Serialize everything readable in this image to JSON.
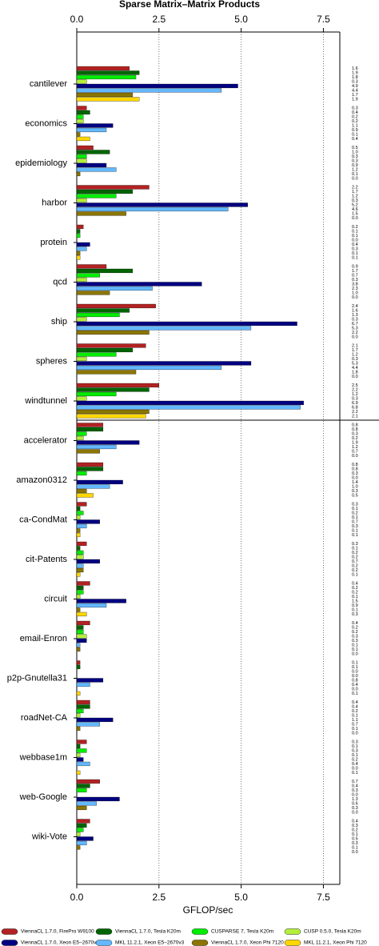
{
  "chart_data": {
    "type": "bar",
    "orientation": "horizontal",
    "title": "Sparse Matrix–Matrix Products",
    "xlabel": "GFLOP/sec",
    "xlim": [
      0,
      8
    ],
    "xticks": [
      {
        "value": 0,
        "label": "0.0"
      },
      2.5,
      {
        "value": 5,
        "label": "5.0"
      },
      7.5
    ],
    "grid": true,
    "categories": [
      "cantilever",
      "economics",
      "epidemiology",
      "harbor",
      "protein",
      "qcd",
      "ship",
      "spheres",
      "windtunnel",
      "accelerator",
      "amazon0312",
      "ca-CondMat",
      "cit-Patents",
      "circuit",
      "email-Enron",
      "p2p-Gnutella31",
      "roadNet-CA",
      "webbase1m",
      "web-Google",
      "wiki-Vote"
    ],
    "series": [
      {
        "name": "ViennaCL 1.7.0, FirePro W9100",
        "color": "#b22222",
        "values": [
          1.6,
          0.3,
          0.5,
          2.2,
          0.2,
          0.9,
          2.4,
          2.1,
          2.5,
          0.8,
          0.8,
          0.3,
          0.3,
          0.4,
          0.4,
          0.1,
          0.4,
          0.3,
          0.7,
          0.4
        ],
        "value_labels": [
          "1.6",
          "0.3",
          "0.5",
          "2.2",
          "0.2",
          "0.9",
          "2.4",
          "2.1",
          "2.5",
          "0.8",
          "0.8",
          "0.3",
          "0.3",
          "0.4",
          "0.4",
          "0.1",
          "0.4",
          "0.3",
          "0.7",
          "0.4"
        ]
      },
      {
        "name": "ViennaCL 1.7.0, Tesla K20m",
        "color": "#006400",
        "values": [
          1.9,
          0.4,
          1.0,
          1.7,
          0.1,
          1.7,
          1.6,
          1.7,
          2.2,
          0.8,
          0.8,
          0.1,
          0.1,
          0.2,
          0.2,
          0.1,
          0.4,
          0.1,
          0.4,
          0.3
        ],
        "value_labels": [
          "1.9",
          "0.4",
          "1.0",
          "1.7",
          "0.1",
          "1.7",
          "1.6",
          "1.7",
          "2.2",
          "0.8",
          "0.8",
          "0.1",
          "0.1",
          "0.2",
          "0.2",
          "0.1",
          "0.4",
          "0.1",
          "0.4",
          "0.3"
        ]
      },
      {
        "name": "CUSPARSE 7, Tesla K20m",
        "color": "#00ee00",
        "values": [
          1.8,
          0.2,
          0.3,
          1.2,
          0.1,
          0.7,
          1.3,
          1.2,
          1.2,
          0.3,
          0.3,
          0.2,
          0.2,
          0.2,
          0.2,
          0,
          0.2,
          0.3,
          0.3,
          0.2
        ],
        "value_labels": [
          "1.8",
          "0.2",
          "0.3",
          "1.2",
          "0.1",
          "0.7",
          "1.3",
          "1.2",
          "1.2",
          "0.3",
          "0.3",
          "0.2",
          "0.2",
          "0.2",
          "0.2",
          "0.0",
          "0.2",
          "0.3",
          "0.3",
          "0.2"
        ]
      },
      {
        "name": "CUSP 0.5.0, Tesla K20m",
        "color": "#b3ee3a",
        "values": [
          0.3,
          0.2,
          0.3,
          0.3,
          0,
          0.3,
          0.3,
          0.3,
          0.3,
          0.2,
          0,
          0.1,
          0.2,
          0.1,
          0.3,
          0,
          0.1,
          0.1,
          0,
          0.1
        ],
        "value_labels": [
          "0.3",
          "0.2",
          "0.3",
          "0.3",
          "0.0",
          "0.3",
          "0.3",
          "0.3",
          "0.3",
          "0.2",
          "0.0",
          "0.1",
          "0.2",
          "0.1",
          "0.3",
          "0.0",
          "0.1",
          "0.1",
          "0.0",
          "0.1"
        ]
      },
      {
        "name": "ViennaCL 1.7.0, Xeon E5−2670v3",
        "color": "#000080",
        "values": [
          4.9,
          1.1,
          0.9,
          5.2,
          0.4,
          3.8,
          6.7,
          5.3,
          6.9,
          1.9,
          1.4,
          0.7,
          0.7,
          1.5,
          0.3,
          0.8,
          1.1,
          0.2,
          1.3,
          0.5
        ],
        "value_labels": [
          "4.9",
          "1.1",
          "0.9",
          "5.2",
          "0.4",
          "3.8",
          "6.7",
          "5.3",
          "6.9",
          "1.9",
          "1.4",
          "0.7",
          "0.7",
          "1.5",
          "0.3",
          "0.8",
          "1.1",
          "0.2",
          "1.3",
          "0.5"
        ]
      },
      {
        "name": "MKL 11.2.1, Xeon E5−2670v3",
        "color": "#63b8ff",
        "values": [
          4.4,
          0.9,
          1.2,
          4.6,
          0.3,
          2.3,
          5.3,
          4.4,
          6.8,
          1.2,
          1.0,
          0.3,
          0.2,
          0.9,
          0.1,
          0.4,
          0.7,
          0.4,
          0.6,
          0.3
        ],
        "value_labels": [
          "4.4",
          "0.9",
          "1.2",
          "4.6",
          "0.3",
          "2.3",
          "5.3",
          "4.4",
          "6.8",
          "1.2",
          "1.0",
          "0.3",
          "0.2",
          "0.9",
          "0.1",
          "0.4",
          "0.7",
          "0.4",
          "0.6",
          "0.3"
        ]
      },
      {
        "name": "ViennaCL 1.7.0, Xeon Phi 7120",
        "color": "#8b7500",
        "values": [
          1.7,
          0.1,
          0.1,
          1.5,
          0.1,
          1.0,
          2.2,
          1.8,
          2.2,
          0.7,
          0.3,
          0.1,
          0.2,
          0.1,
          0.1,
          0,
          0.1,
          0,
          0.3,
          0.1
        ],
        "value_labels": [
          "1.7",
          "0.1",
          "0.1",
          "1.5",
          "0.1",
          "1.0",
          "2.2",
          "1.8",
          "2.2",
          "0.7",
          "0.3",
          "0.1",
          "0.2",
          "0.1",
          "0.1",
          "0.0",
          "0.1",
          "0.0",
          "0.3",
          "0.1"
        ]
      },
      {
        "name": "MKL 11.2.1, Xeon Phi 7120",
        "color": "#ffd700",
        "values": [
          1.9,
          0.4,
          0,
          0,
          0.1,
          0,
          0,
          0,
          2.1,
          0,
          0.5,
          0.1,
          0.1,
          0.3,
          0,
          0.1,
          0,
          0.1,
          0,
          0
        ],
        "value_labels": [
          "1.9",
          "0.4",
          "0.0",
          "0.0",
          "0.1",
          "0.0",
          "0.0",
          "0.0",
          "2.1",
          "0.0",
          "0.5",
          "0.1",
          "0.1",
          "0.3",
          "0.0",
          "0.1",
          "0.0",
          "0.1",
          "0.0",
          "0.0"
        ]
      }
    ]
  }
}
